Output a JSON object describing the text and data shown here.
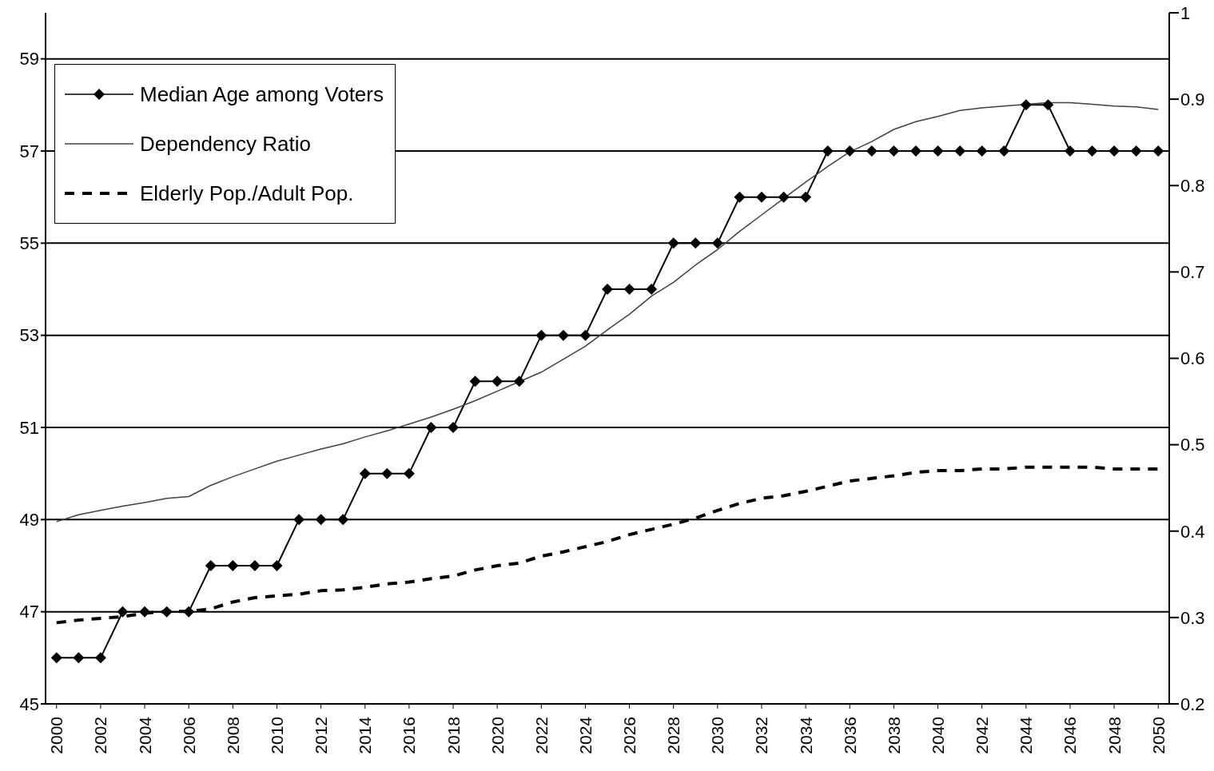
{
  "chart_data": {
    "type": "line",
    "x": [
      2000,
      2001,
      2002,
      2003,
      2004,
      2005,
      2006,
      2007,
      2008,
      2009,
      2010,
      2011,
      2012,
      2013,
      2014,
      2015,
      2016,
      2017,
      2018,
      2019,
      2020,
      2021,
      2022,
      2023,
      2024,
      2025,
      2026,
      2027,
      2028,
      2029,
      2030,
      2031,
      2032,
      2033,
      2034,
      2035,
      2036,
      2037,
      2038,
      2039,
      2040,
      2041,
      2042,
      2043,
      2044,
      2045,
      2046,
      2047,
      2048,
      2049,
      2050
    ],
    "xlim": [
      1999.5,
      2050.5
    ],
    "xticks": [
      2000,
      2002,
      2004,
      2006,
      2008,
      2010,
      2012,
      2014,
      2016,
      2018,
      2020,
      2022,
      2024,
      2026,
      2028,
      2030,
      2032,
      2034,
      2036,
      2038,
      2040,
      2042,
      2044,
      2046,
      2048,
      2050
    ],
    "ylim": [
      45,
      60
    ],
    "yticks": [
      45,
      47,
      49,
      51,
      53,
      55,
      57,
      59
    ],
    "y2lim": [
      0.2,
      1
    ],
    "y2ticks": [
      0.2,
      0.3,
      0.4,
      0.5,
      0.6,
      0.7,
      0.8,
      0.9,
      1
    ],
    "grid": "y",
    "legend": "top left",
    "series": [
      {
        "name": "Median Age among Voters",
        "color": "#000000",
        "marker": "diamond",
        "line_style": "solid",
        "values": [
          46,
          46,
          46,
          47,
          47,
          47,
          47,
          48,
          48,
          48,
          48,
          49,
          49,
          49,
          50,
          50,
          50,
          51,
          51,
          52,
          52,
          52,
          53,
          53,
          53,
          54,
          54,
          54,
          55,
          55,
          55,
          56,
          56,
          56,
          56,
          57,
          57,
          57,
          57,
          57,
          57,
          57,
          57,
          57,
          58,
          58,
          57,
          57,
          57,
          57,
          57
        ]
      },
      {
        "name": "Dependency Ratio",
        "color": "#404040",
        "axis": "y2",
        "marker": "none",
        "line_style": "solid",
        "values": [
          0.411,
          0.419,
          0.424,
          0.429,
          0.433,
          0.438,
          0.44,
          0.453,
          0.463,
          0.472,
          0.481,
          0.488,
          0.495,
          0.501,
          0.509,
          0.516,
          0.524,
          0.532,
          0.541,
          0.551,
          0.562,
          0.573,
          0.584,
          0.599,
          0.614,
          0.633,
          0.651,
          0.672,
          0.688,
          0.708,
          0.726,
          0.747,
          0.766,
          0.785,
          0.804,
          0.822,
          0.839,
          0.851,
          0.865,
          0.874,
          0.88,
          0.887,
          0.89,
          0.892,
          0.894,
          0.896,
          0.896,
          0.894,
          0.892,
          0.891,
          0.888
        ]
      },
      {
        "name": "Elderly Pop./Adult Pop.",
        "color": "#000000",
        "axis": "y2",
        "marker": "none",
        "line_style": "dashed",
        "values": [
          0.294,
          0.297,
          0.299,
          0.301,
          0.305,
          0.307,
          0.307,
          0.31,
          0.318,
          0.323,
          0.325,
          0.327,
          0.331,
          0.332,
          0.335,
          0.339,
          0.341,
          0.345,
          0.348,
          0.355,
          0.36,
          0.363,
          0.371,
          0.376,
          0.382,
          0.388,
          0.396,
          0.402,
          0.408,
          0.415,
          0.424,
          0.432,
          0.438,
          0.441,
          0.446,
          0.452,
          0.458,
          0.461,
          0.464,
          0.468,
          0.47,
          0.47,
          0.472,
          0.472,
          0.474,
          0.474,
          0.474,
          0.474,
          0.472,
          0.472,
          0.472
        ]
      }
    ]
  }
}
